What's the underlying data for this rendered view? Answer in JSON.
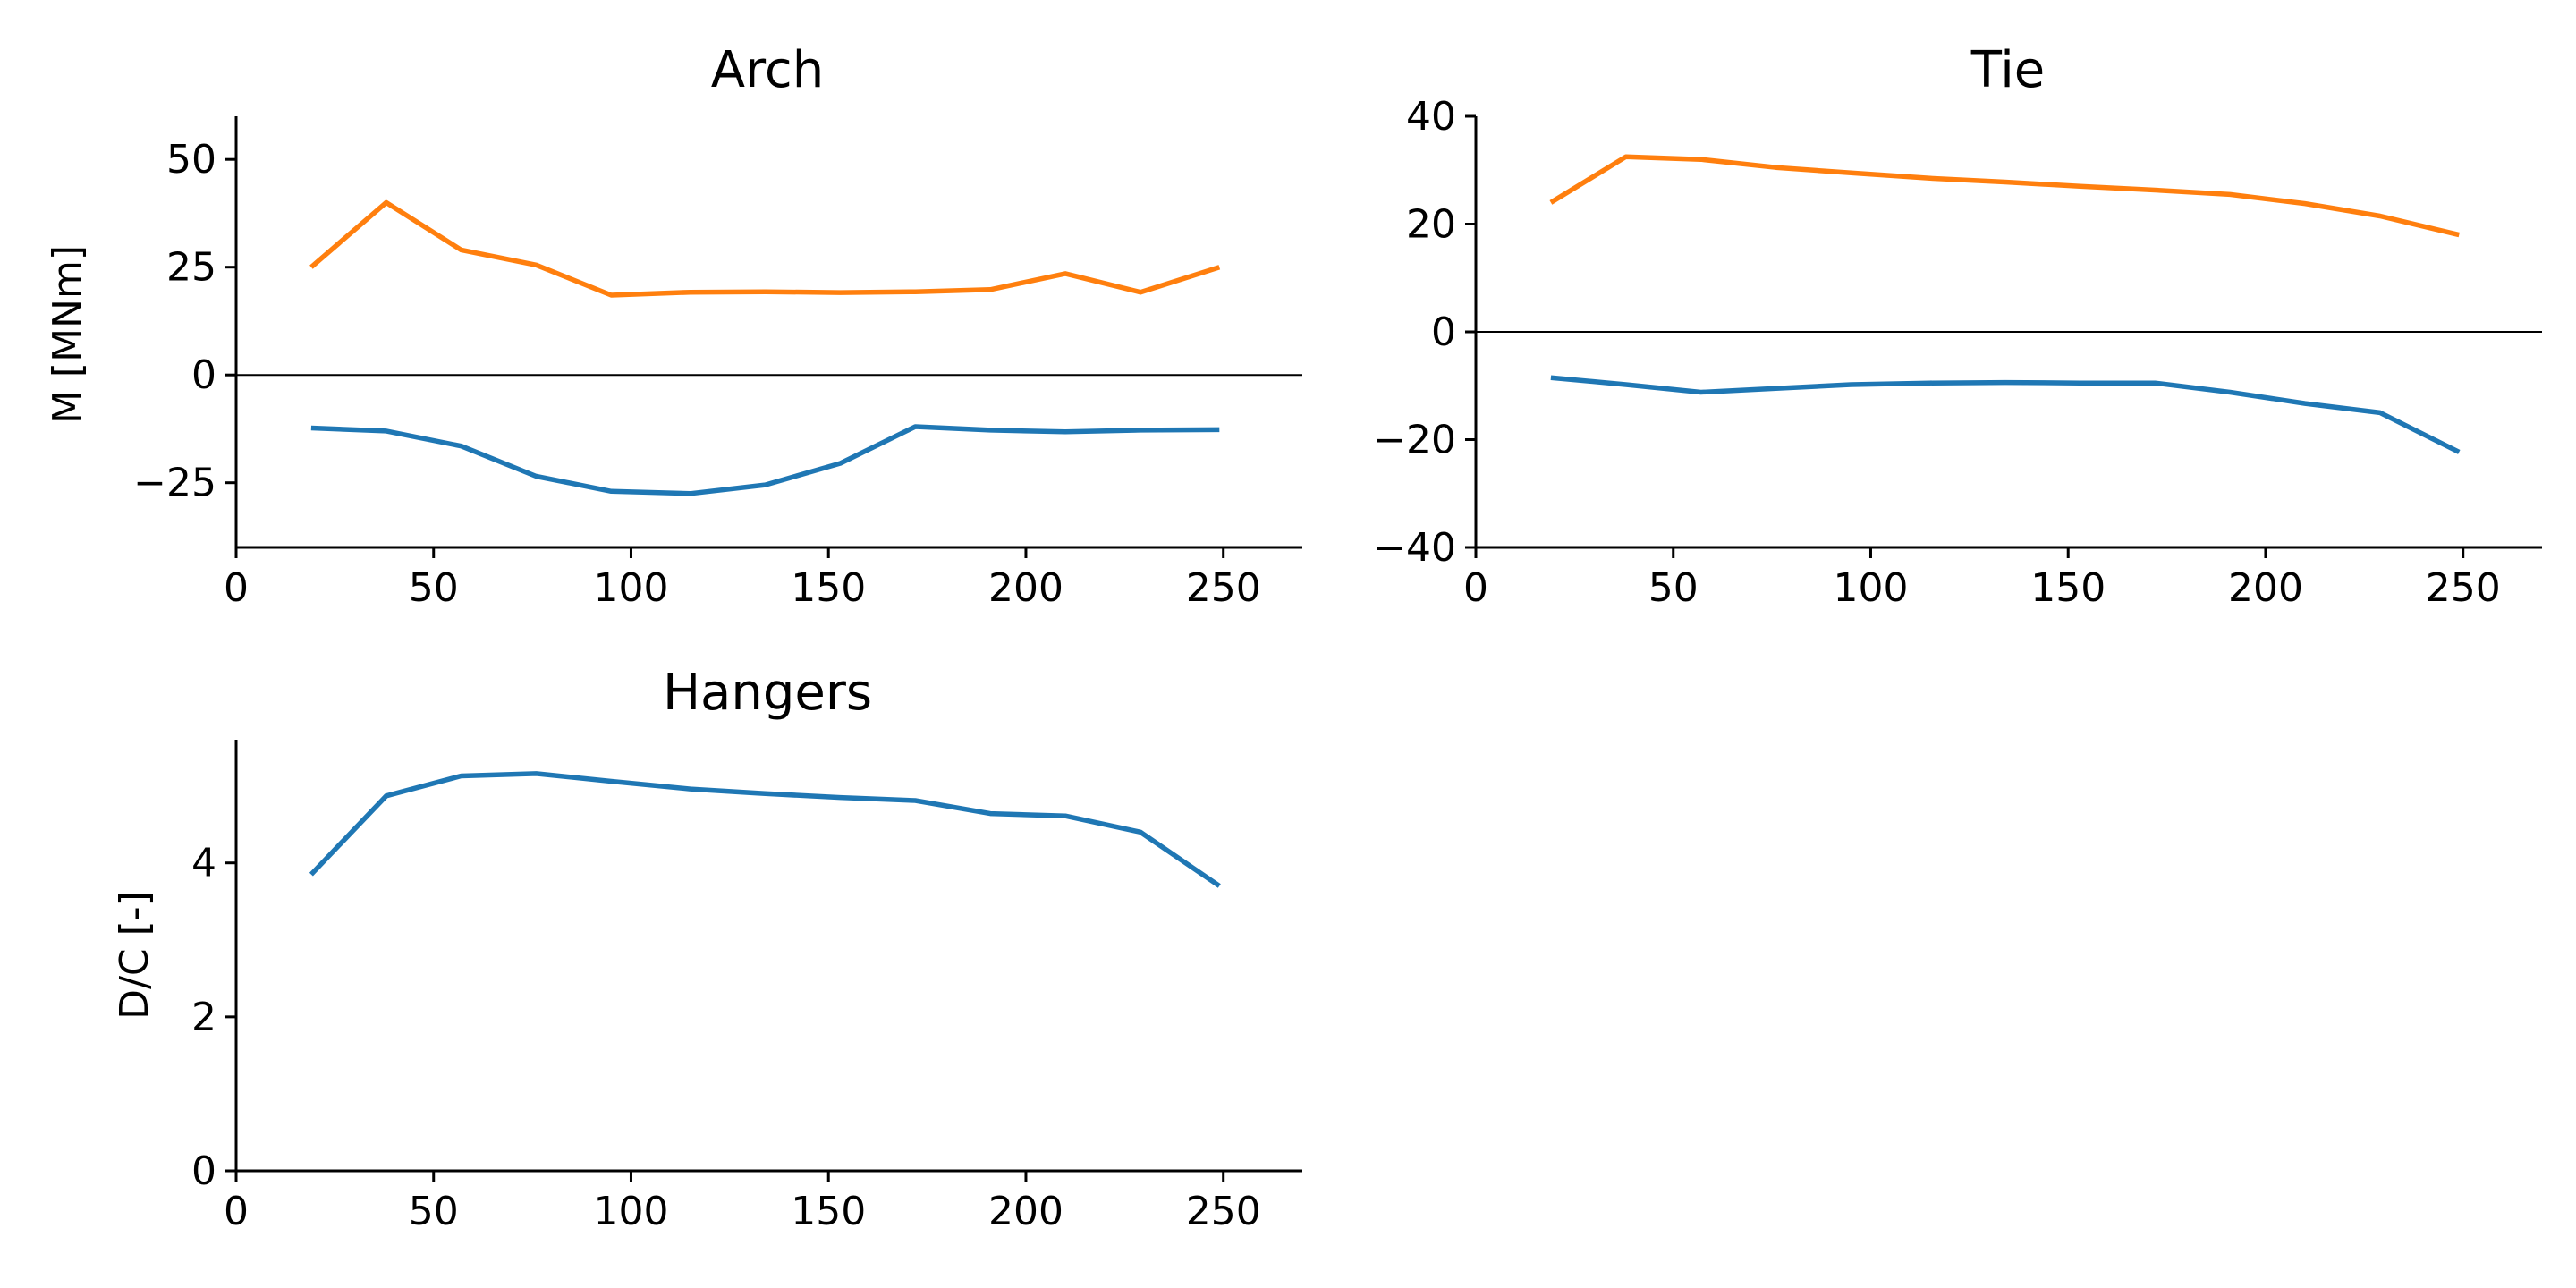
{
  "colors": {
    "blue": "#1f77b4",
    "orange": "#ff7f0e",
    "axis": "#000000",
    "background": "#ffffff"
  },
  "chart_data": [
    {
      "type": "line",
      "title": "Arch",
      "xlabel": "",
      "ylabel": "M [MNm]",
      "xlim": [
        0,
        270
      ],
      "ylim": [
        -40,
        60
      ],
      "xticks": [
        0,
        50,
        100,
        150,
        200,
        250
      ],
      "xtick_labels": [
        "0",
        "50",
        "100",
        "150",
        "200",
        "250"
      ],
      "yticks": [
        -25,
        0,
        25,
        50
      ],
      "ytick_labels": [
        "−25",
        "0",
        "25",
        "50"
      ],
      "zero_line": true,
      "grid": false,
      "x": [
        19,
        38,
        57,
        76,
        95,
        115,
        134,
        153,
        172,
        191,
        210,
        229,
        249
      ],
      "series": [
        {
          "color": "#ff7f0e",
          "values": [
            25,
            40,
            29,
            25.5,
            18.5,
            19.2,
            19.3,
            19.1,
            19.3,
            19.8,
            23.5,
            19.2,
            25
          ]
        },
        {
          "color": "#1f77b4",
          "values": [
            -12.3,
            -13,
            -16.5,
            -23.5,
            -27,
            -27.5,
            -25.5,
            -20.5,
            -12,
            -12.8,
            -13.2,
            -12.8,
            -12.7
          ]
        }
      ]
    },
    {
      "type": "line",
      "title": "Tie",
      "xlabel": "",
      "ylabel": "",
      "xlim": [
        0,
        270
      ],
      "ylim": [
        -40,
        40
      ],
      "xticks": [
        0,
        50,
        100,
        150,
        200,
        250
      ],
      "xtick_labels": [
        "0",
        "50",
        "100",
        "150",
        "200",
        "250"
      ],
      "yticks": [
        -40,
        -20,
        0,
        20,
        40
      ],
      "ytick_labels": [
        "−40",
        "−20",
        "0",
        "20",
        "40"
      ],
      "zero_line": true,
      "grid": false,
      "x": [
        19,
        38,
        57,
        76,
        95,
        115,
        134,
        153,
        172,
        191,
        210,
        229,
        249
      ],
      "series": [
        {
          "color": "#ff7f0e",
          "values": [
            24,
            32.5,
            32,
            30.5,
            29.5,
            28.5,
            27.8,
            27,
            26.3,
            25.5,
            23.8,
            21.5,
            18
          ]
        },
        {
          "color": "#1f77b4",
          "values": [
            -8.5,
            -9.8,
            -11.2,
            -10.5,
            -9.8,
            -9.5,
            -9.4,
            -9.5,
            -9.5,
            -11.2,
            -13.3,
            -15,
            -22.3
          ]
        }
      ]
    },
    {
      "type": "line",
      "title": "Hangers",
      "xlabel": "",
      "ylabel": "D/C [-]",
      "xlim": [
        0,
        270
      ],
      "ylim": [
        0,
        5.6
      ],
      "xticks": [
        0,
        50,
        100,
        150,
        200,
        250
      ],
      "xtick_labels": [
        "0",
        "50",
        "100",
        "150",
        "200",
        "250"
      ],
      "yticks": [
        0,
        2,
        4
      ],
      "ytick_labels": [
        "0",
        "2",
        "4"
      ],
      "zero_line": false,
      "grid": false,
      "x": [
        19,
        38,
        57,
        76,
        95,
        115,
        134,
        153,
        172,
        191,
        210,
        229,
        249
      ],
      "series": [
        {
          "color": "#1f77b4",
          "values": [
            3.85,
            4.87,
            5.13,
            5.16,
            5.06,
            4.96,
            4.9,
            4.85,
            4.81,
            4.64,
            4.61,
            4.4,
            3.7
          ]
        }
      ]
    }
  ]
}
